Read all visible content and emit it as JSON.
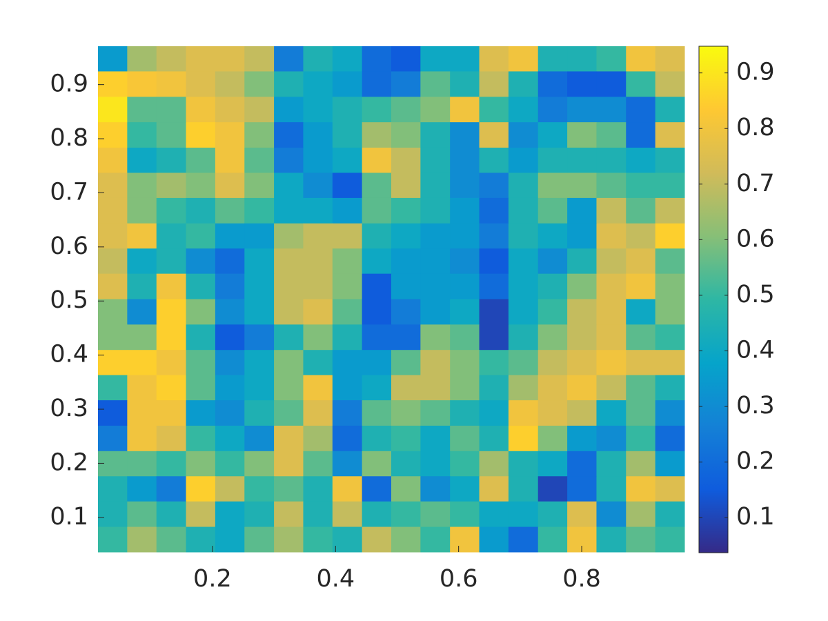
{
  "chart_data": {
    "type": "heatmap",
    "x": [
      0.038,
      0.085,
      0.133,
      0.181,
      0.228,
      0.276,
      0.324,
      0.371,
      0.419,
      0.467,
      0.514,
      0.562,
      0.61,
      0.657,
      0.705,
      0.753,
      0.8,
      0.848,
      0.896,
      0.943
    ],
    "y": [
      0.948,
      0.901,
      0.854,
      0.807,
      0.76,
      0.714,
      0.667,
      0.62,
      0.574,
      0.527,
      0.48,
      0.433,
      0.386,
      0.34,
      0.293,
      0.246,
      0.199,
      0.153,
      0.106,
      0.059
    ],
    "z": [
      [
        0.35,
        0.65,
        0.7,
        0.75,
        0.75,
        0.7,
        0.25,
        0.45,
        0.4,
        0.2,
        0.15,
        0.4,
        0.4,
        0.75,
        0.8,
        0.45,
        0.45,
        0.5,
        0.8,
        0.75
      ],
      [
        0.85,
        0.82,
        0.8,
        0.75,
        0.7,
        0.6,
        0.45,
        0.4,
        0.35,
        0.2,
        0.25,
        0.55,
        0.45,
        0.7,
        0.45,
        0.2,
        0.15,
        0.15,
        0.5,
        0.7
      ],
      [
        0.9,
        0.55,
        0.55,
        0.8,
        0.75,
        0.7,
        0.35,
        0.4,
        0.45,
        0.5,
        0.55,
        0.6,
        0.8,
        0.5,
        0.4,
        0.25,
        0.3,
        0.3,
        0.2,
        0.45
      ],
      [
        0.85,
        0.5,
        0.55,
        0.85,
        0.8,
        0.6,
        0.2,
        0.35,
        0.45,
        0.65,
        0.6,
        0.45,
        0.3,
        0.75,
        0.3,
        0.4,
        0.6,
        0.55,
        0.2,
        0.75
      ],
      [
        0.8,
        0.4,
        0.45,
        0.55,
        0.8,
        0.55,
        0.25,
        0.35,
        0.4,
        0.8,
        0.7,
        0.45,
        0.3,
        0.45,
        0.35,
        0.45,
        0.45,
        0.45,
        0.4,
        0.45
      ],
      [
        0.75,
        0.6,
        0.65,
        0.6,
        0.75,
        0.6,
        0.4,
        0.3,
        0.15,
        0.55,
        0.7,
        0.45,
        0.3,
        0.25,
        0.45,
        0.6,
        0.6,
        0.55,
        0.5,
        0.5
      ],
      [
        0.75,
        0.6,
        0.5,
        0.45,
        0.55,
        0.5,
        0.4,
        0.4,
        0.35,
        0.55,
        0.5,
        0.45,
        0.35,
        0.2,
        0.45,
        0.55,
        0.35,
        0.7,
        0.55,
        0.7
      ],
      [
        0.75,
        0.8,
        0.45,
        0.5,
        0.35,
        0.35,
        0.65,
        0.7,
        0.7,
        0.45,
        0.4,
        0.35,
        0.35,
        0.25,
        0.45,
        0.4,
        0.35,
        0.75,
        0.7,
        0.85
      ],
      [
        0.7,
        0.4,
        0.45,
        0.3,
        0.2,
        0.4,
        0.7,
        0.7,
        0.6,
        0.4,
        0.35,
        0.35,
        0.3,
        0.15,
        0.4,
        0.3,
        0.45,
        0.7,
        0.75,
        0.55
      ],
      [
        0.75,
        0.45,
        0.8,
        0.45,
        0.25,
        0.4,
        0.7,
        0.7,
        0.6,
        0.15,
        0.35,
        0.35,
        0.35,
        0.2,
        0.4,
        0.45,
        0.6,
        0.75,
        0.8,
        0.6
      ],
      [
        0.6,
        0.3,
        0.85,
        0.6,
        0.3,
        0.4,
        0.7,
        0.75,
        0.55,
        0.15,
        0.25,
        0.35,
        0.4,
        0.1,
        0.4,
        0.5,
        0.7,
        0.75,
        0.4,
        0.6
      ],
      [
        0.6,
        0.6,
        0.85,
        0.45,
        0.15,
        0.25,
        0.45,
        0.6,
        0.45,
        0.2,
        0.2,
        0.6,
        0.55,
        0.1,
        0.45,
        0.6,
        0.7,
        0.75,
        0.55,
        0.5
      ],
      [
        0.85,
        0.85,
        0.8,
        0.55,
        0.3,
        0.4,
        0.6,
        0.45,
        0.35,
        0.35,
        0.55,
        0.7,
        0.6,
        0.5,
        0.55,
        0.7,
        0.75,
        0.8,
        0.75,
        0.75
      ],
      [
        0.5,
        0.8,
        0.85,
        0.55,
        0.35,
        0.4,
        0.6,
        0.8,
        0.35,
        0.4,
        0.7,
        0.7,
        0.6,
        0.45,
        0.65,
        0.75,
        0.8,
        0.7,
        0.55,
        0.45
      ],
      [
        0.15,
        0.8,
        0.8,
        0.35,
        0.3,
        0.45,
        0.55,
        0.75,
        0.25,
        0.55,
        0.6,
        0.55,
        0.45,
        0.4,
        0.8,
        0.75,
        0.7,
        0.4,
        0.55,
        0.3
      ],
      [
        0.25,
        0.8,
        0.75,
        0.5,
        0.4,
        0.3,
        0.75,
        0.65,
        0.2,
        0.45,
        0.5,
        0.4,
        0.55,
        0.45,
        0.85,
        0.6,
        0.35,
        0.3,
        0.5,
        0.2
      ],
      [
        0.55,
        0.55,
        0.5,
        0.6,
        0.5,
        0.6,
        0.75,
        0.55,
        0.3,
        0.6,
        0.45,
        0.4,
        0.5,
        0.65,
        0.45,
        0.4,
        0.2,
        0.45,
        0.65,
        0.35
      ],
      [
        0.45,
        0.35,
        0.25,
        0.85,
        0.7,
        0.5,
        0.55,
        0.45,
        0.8,
        0.2,
        0.6,
        0.3,
        0.4,
        0.75,
        0.45,
        0.1,
        0.2,
        0.45,
        0.8,
        0.75
      ],
      [
        0.45,
        0.55,
        0.45,
        0.7,
        0.4,
        0.45,
        0.7,
        0.45,
        0.7,
        0.45,
        0.5,
        0.55,
        0.5,
        0.4,
        0.4,
        0.45,
        0.75,
        0.3,
        0.65,
        0.45
      ],
      [
        0.5,
        0.65,
        0.55,
        0.45,
        0.4,
        0.55,
        0.65,
        0.5,
        0.45,
        0.7,
        0.6,
        0.5,
        0.8,
        0.35,
        0.2,
        0.5,
        0.8,
        0.45,
        0.55,
        0.5
      ]
    ],
    "xlim": [
      0.014,
      0.967
    ],
    "ylim": [
      0.036,
      0.971
    ],
    "xticks": [
      0.2,
      0.4,
      0.6,
      0.8
    ],
    "yticks": [
      0.1,
      0.2,
      0.3,
      0.4,
      0.5,
      0.6,
      0.7,
      0.8,
      0.9
    ],
    "clim": [
      0.037,
      0.948
    ],
    "colorbar_ticks": [
      0.1,
      0.2,
      0.3,
      0.4,
      0.5,
      0.6,
      0.7,
      0.8,
      0.9
    ],
    "colormap": [
      "#352a87",
      "#0f5cdd",
      "#1481d6",
      "#06a4ca",
      "#2eb7a4",
      "#87bf77",
      "#d1bb59",
      "#fec832",
      "#f9fb0e"
    ]
  }
}
